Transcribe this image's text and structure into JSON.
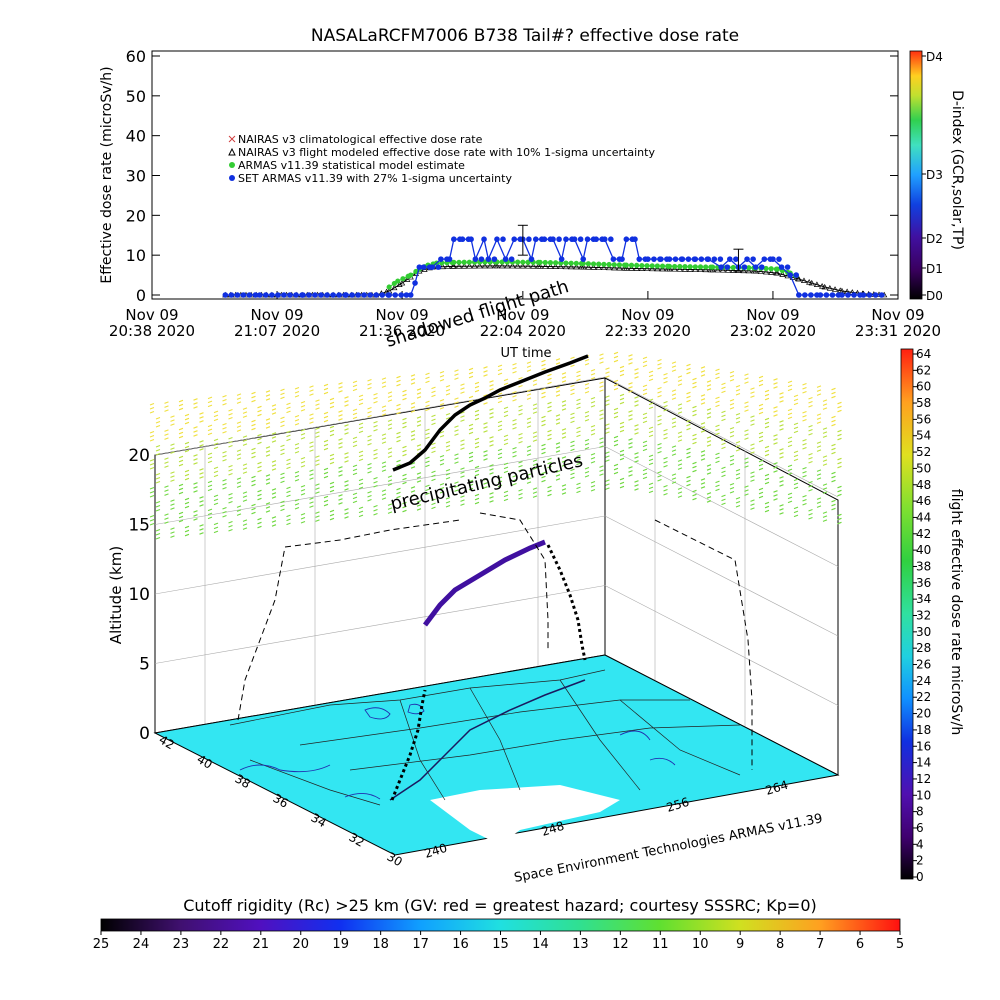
{
  "title": "NASALaRCFM7006  B738 Tail#? effective dose rate",
  "colors": {
    "nairas_clim": "#d04040",
    "nairas_flight": "#000000",
    "armas_stat": "#33cc33",
    "set_armas": "#1030e0",
    "rc_region": "#33e6f2",
    "flight_path": "#000000"
  },
  "chart_data": [
    {
      "type": "line",
      "title": "NASALaRCFM7006  B738 Tail#? effective dose rate",
      "ylabel": "Effective dose rate (microSv/h)",
      "xlabel": "UT time",
      "ylim": [
        0,
        60
      ],
      "yticks": [
        "0",
        "10",
        "20",
        "30",
        "40",
        "50",
        "60"
      ],
      "xticks": [
        {
          "line1": "Nov 09",
          "line2": "20:38 2020",
          "t": 0
        },
        {
          "line1": "Nov 09",
          "line2": "21:07 2020",
          "t": 29
        },
        {
          "line1": "Nov 09",
          "line2": "21:36 2020",
          "t": 58
        },
        {
          "line1": "Nov 09",
          "line2": "22:04 2020",
          "t": 86
        },
        {
          "line1": "Nov 09",
          "line2": "22:33 2020",
          "t": 115
        },
        {
          "line1": "Nov 09",
          "line2": "23:02 2020",
          "t": 144
        },
        {
          "line1": "Nov 09",
          "line2": "23:31 2020",
          "t": 173
        }
      ],
      "xlim_minutes": [
        0,
        173
      ],
      "grid": false,
      "legend_position": "upper-left",
      "legend": [
        {
          "label": "NAIRAS v3 climatological effective dose rate",
          "color": "#d04040",
          "marker": "x"
        },
        {
          "label": "NAIRAS v3 flight modeled effective dose rate with 10% 1-sigma uncertainty",
          "color": "#000000",
          "marker": "triangle"
        },
        {
          "label": "ARMAS v11.39 statistical model estimate",
          "color": "#33cc33",
          "marker": "star"
        },
        {
          "label": "SET ARMAS v11.39 with 27% 1-sigma uncertainty",
          "color": "#1030e0",
          "marker": "dot"
        }
      ],
      "series": [
        {
          "name": "NAIRAS v3 flight modeled effective dose rate with 10% 1-sigma uncertainty",
          "points": [
            [
              17,
              0
            ],
            [
              30,
              0
            ],
            [
              45,
              0
            ],
            [
              52,
              0
            ],
            [
              55,
              1
            ],
            [
              58,
              3
            ],
            [
              60,
              4.5
            ],
            [
              62,
              6
            ],
            [
              65,
              7
            ],
            [
              70,
              7.2
            ],
            [
              80,
              7.3
            ],
            [
              90,
              7.2
            ],
            [
              100,
              7
            ],
            [
              110,
              6.7
            ],
            [
              120,
              6.5
            ],
            [
              130,
              6.3
            ],
            [
              140,
              6
            ],
            [
              145,
              5.5
            ],
            [
              150,
              4
            ],
            [
              153,
              3
            ],
            [
              156,
              2
            ],
            [
              160,
              1
            ],
            [
              165,
              0.3
            ],
            [
              170,
              0
            ]
          ]
        },
        {
          "name": "ARMAS v11.39 statistical model estimate",
          "points": [
            [
              55,
              2
            ],
            [
              57,
              3.5
            ],
            [
              60,
              5
            ],
            [
              62,
              6.5
            ],
            [
              64,
              7.5
            ],
            [
              66,
              8
            ],
            [
              70,
              8.2
            ],
            [
              80,
              8.3
            ],
            [
              90,
              8.2
            ],
            [
              100,
              7.9
            ],
            [
              110,
              7.5
            ],
            [
              120,
              7.2
            ],
            [
              130,
              7
            ],
            [
              140,
              6.8
            ],
            [
              145,
              6.5
            ],
            [
              148,
              5.5
            ],
            [
              150,
              4.5
            ]
          ]
        },
        {
          "name": "SET ARMAS v11.39 with 27% 1-sigma uncertainty",
          "points": [
            [
              17,
              0
            ],
            [
              25,
              0
            ],
            [
              35,
              0
            ],
            [
              45,
              0
            ],
            [
              55,
              0
            ],
            [
              59,
              0
            ],
            [
              60,
              0
            ],
            [
              61,
              3
            ],
            [
              62,
              7
            ],
            [
              63,
              7
            ],
            [
              65,
              7
            ],
            [
              67,
              9
            ],
            [
              69,
              9
            ],
            [
              70,
              14
            ],
            [
              72,
              14
            ],
            [
              74,
              14
            ],
            [
              75,
              9
            ],
            [
              77,
              14
            ],
            [
              78,
              9
            ],
            [
              80,
              14
            ],
            [
              82,
              9
            ],
            [
              84,
              14
            ],
            [
              86,
              14
            ],
            [
              88,
              9
            ],
            [
              89,
              14
            ],
            [
              91,
              14
            ],
            [
              93,
              14
            ],
            [
              95,
              9
            ],
            [
              96,
              14
            ],
            [
              98,
              14
            ],
            [
              100,
              9
            ],
            [
              101,
              14
            ],
            [
              103,
              14
            ],
            [
              105,
              14
            ],
            [
              107,
              9
            ],
            [
              109,
              9
            ],
            [
              110,
              14
            ],
            [
              112,
              14
            ],
            [
              113,
              9
            ],
            [
              115,
              9
            ],
            [
              118,
              9
            ],
            [
              120,
              9
            ],
            [
              123,
              9
            ],
            [
              126,
              9
            ],
            [
              129,
              9
            ],
            [
              132,
              7
            ],
            [
              134,
              9
            ],
            [
              136,
              7
            ],
            [
              138,
              9
            ],
            [
              140,
              7
            ],
            [
              142,
              9
            ],
            [
              144,
              9
            ],
            [
              146,
              7
            ],
            [
              148,
              5
            ],
            [
              150,
              0
            ],
            [
              155,
              0
            ],
            [
              160,
              0
            ],
            [
              165,
              0
            ],
            [
              170,
              0
            ]
          ]
        }
      ],
      "error_bars": [
        {
          "t": 86,
          "low": 10,
          "high": 17.5
        },
        {
          "t": 136,
          "low": 6,
          "high": 11.5
        }
      ],
      "right_axis": {
        "label": "D-index (GCR,solar,TP)",
        "ticks": [
          "D0",
          "D1",
          "D2",
          "D3",
          "D4"
        ]
      }
    },
    {
      "type": "scatter",
      "subtype": "3d-surface-map",
      "zlabel": "Altitude (km)",
      "zlim": [
        0,
        20
      ],
      "zticks": [
        "0",
        "5",
        "10",
        "15",
        "20"
      ],
      "lat_ticks": [
        "42",
        "40",
        "38",
        "36",
        "34",
        "32",
        "30"
      ],
      "lon_ticks": [
        "240",
        "248",
        "256",
        "264"
      ],
      "annotations": [
        "shadowed flight path",
        "precipitating particles"
      ],
      "footer": "Space Environment Technologies ARMAS v11.39",
      "colorbar": {
        "label": "flight effective dose rate microSv/h",
        "min": 0,
        "max": 64,
        "step": 2
      }
    },
    {
      "type": "heatmap",
      "subtype": "colorbar",
      "title": "Cutoff rigidity (Rc) >25 km (GV: red = greatest hazard; courtesy SSSRC; Kp=0)",
      "ticks": [
        "25",
        "24",
        "23",
        "22",
        "21",
        "20",
        "19",
        "18",
        "17",
        "16",
        "15",
        "14",
        "13",
        "12",
        "11",
        "10",
        "9",
        "8",
        "7",
        "6",
        "5"
      ]
    }
  ]
}
